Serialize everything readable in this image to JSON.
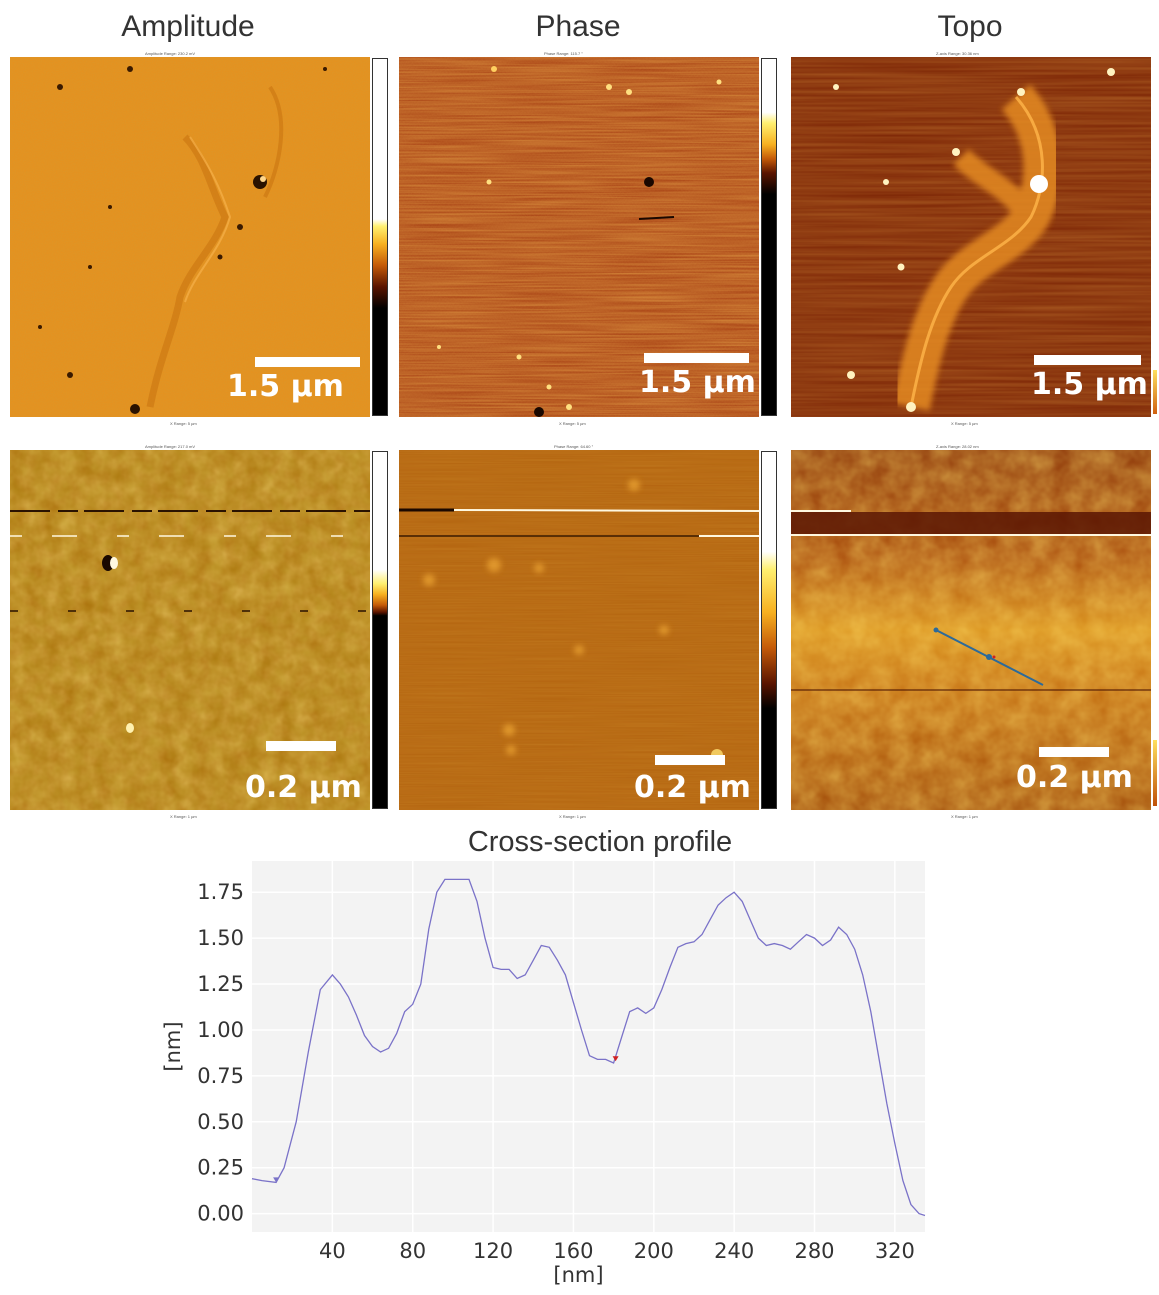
{
  "columns": [
    "Amplitude",
    "Phase",
    "Topo"
  ],
  "scale_labels": {
    "top": "1.5 µm",
    "bottom": "0.2 µm"
  },
  "panel_headers": {
    "amp_top": "Amplitude Range: 230.2 mV",
    "phase_top": "Phase Range: 115.7 °",
    "topo_top": "Z-axis Range: 30.36 nm",
    "amp_bottom": "Amplitude Range: 217.0 mV",
    "phase_bottom": "Phase Range: 64.60 °",
    "topo_bottom": "Z-axis Range: 28.02 nm"
  },
  "panel_footers": {
    "top": "X Range: 5 µm",
    "bottom": "X Range: 1 µm"
  },
  "colors": {
    "amplitude": "#e8901c",
    "phase": "#a8300a",
    "topo": "#8a2806",
    "line_marker": "#2c6a9a",
    "profile_line": "#7a72c8",
    "profile_bg": "#f3f3f3",
    "min_marker": "#d02020"
  },
  "chart_data": {
    "type": "line",
    "title": "Cross-section profile",
    "xlabel": "[nm]",
    "ylabel": "[nm]",
    "xlim": [
      0,
      335
    ],
    "ylim": [
      -0.1,
      1.92
    ],
    "xticks": [
      40,
      80,
      120,
      160,
      200,
      240,
      280,
      320
    ],
    "yticks": [
      0.0,
      0.25,
      0.5,
      0.75,
      1.0,
      1.25,
      1.5,
      1.75
    ],
    "grid": true,
    "x": [
      0,
      5,
      12,
      16,
      22,
      28,
      34,
      40,
      44,
      48,
      52,
      56,
      60,
      64,
      68,
      72,
      76,
      80,
      84,
      88,
      92,
      96,
      100,
      104,
      108,
      112,
      116,
      120,
      124,
      128,
      132,
      136,
      140,
      144,
      148,
      152,
      156,
      160,
      164,
      168,
      172,
      176,
      180,
      184,
      188,
      192,
      196,
      200,
      204,
      208,
      212,
      216,
      220,
      224,
      228,
      232,
      236,
      240,
      244,
      248,
      252,
      256,
      260,
      264,
      268,
      272,
      276,
      280,
      284,
      288,
      292,
      296,
      300,
      304,
      308,
      312,
      316,
      320,
      324,
      328,
      332,
      335
    ],
    "y": [
      0.19,
      0.18,
      0.17,
      0.25,
      0.5,
      0.88,
      1.22,
      1.3,
      1.25,
      1.18,
      1.08,
      0.97,
      0.91,
      0.88,
      0.9,
      0.98,
      1.1,
      1.14,
      1.25,
      1.55,
      1.75,
      1.82,
      1.82,
      1.82,
      1.82,
      1.7,
      1.5,
      1.34,
      1.33,
      1.33,
      1.28,
      1.3,
      1.38,
      1.46,
      1.45,
      1.38,
      1.3,
      1.15,
      1.0,
      0.86,
      0.84,
      0.84,
      0.82,
      0.96,
      1.1,
      1.12,
      1.09,
      1.12,
      1.22,
      1.34,
      1.45,
      1.47,
      1.48,
      1.52,
      1.6,
      1.68,
      1.72,
      1.75,
      1.7,
      1.6,
      1.5,
      1.46,
      1.47,
      1.46,
      1.44,
      1.48,
      1.52,
      1.5,
      1.46,
      1.49,
      1.56,
      1.52,
      1.44,
      1.3,
      1.1,
      0.85,
      0.6,
      0.38,
      0.18,
      0.05,
      0.0,
      -0.01
    ],
    "min_marker": {
      "x": 181,
      "y": 0.83
    }
  }
}
